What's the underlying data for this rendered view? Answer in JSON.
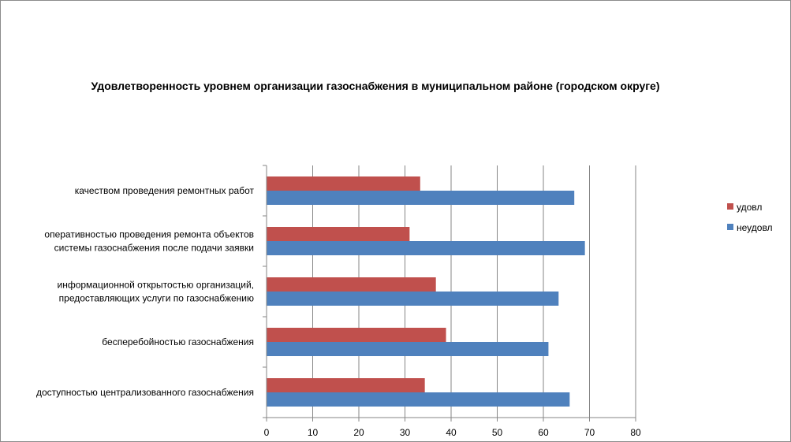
{
  "chart_data": {
    "type": "bar",
    "orientation": "horizontal",
    "title": "Удовлетворенность уровнем организации газоснабжения в муниципальном районе (городском округе)",
    "categories": [
      [
        "качеством проведения  ремонтных работ"
      ],
      [
        "оперативностью проведения ремонта объектов",
        "системы газоснабжения после подачи заявки"
      ],
      [
        "информационной открытостью организаций,",
        "предоставляющих услуги по газоснабжению"
      ],
      [
        "бесперебойностью  газоснабжения"
      ],
      [
        "доступностью централизованного газоснабжения"
      ]
    ],
    "series": [
      {
        "name": "удовл",
        "color": "#c0504d",
        "values": [
          33.3,
          31,
          36.7,
          38.9,
          34.3
        ]
      },
      {
        "name": "неудовл",
        "color": "#4f81bd",
        "values": [
          66.7,
          69,
          63.3,
          61.1,
          65.7
        ]
      }
    ],
    "xlim": [
      0,
      80
    ],
    "xticks": [
      "0",
      "10",
      "20",
      "30",
      "40",
      "50",
      "60",
      "70",
      "80"
    ],
    "grid": "vertical",
    "legend_position": "right"
  }
}
